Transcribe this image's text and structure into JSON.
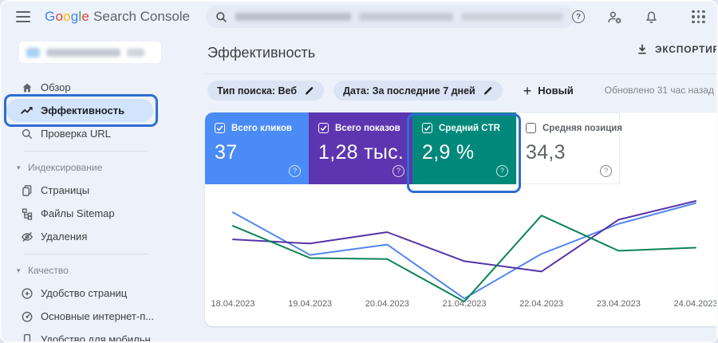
{
  "topbar": {
    "logo_google": "Google",
    "logo_google_colors": [
      "#4285F4",
      "#EA4335",
      "#FBBC05",
      "#4285F4",
      "#34A853",
      "#EA4335"
    ],
    "logo_product": "Search Console",
    "search_query": "(размыто)",
    "help_glyph": "?"
  },
  "icons": {
    "hamburger-icon": "three horizontal bars",
    "search-icon": "magnifier",
    "help-icon": "question mark in circle",
    "user-settings-icon": "person with gear",
    "notifications-icon": "bell",
    "apps-grid-icon": "3x3 dot grid",
    "edit-icon": "pencil",
    "export-icon": "download arrow with bar"
  },
  "sidebar": {
    "property": "(размытое название ресурса)",
    "items": [
      {
        "label": "Обзор",
        "icon": "home",
        "name": "overview"
      },
      {
        "label": "Эффективность",
        "icon": "trending-up",
        "name": "performance",
        "active": true
      },
      {
        "label": "Проверка URL",
        "icon": "search",
        "name": "url-inspection"
      },
      {
        "type": "divider"
      },
      {
        "type": "section",
        "label": "Индексирование",
        "name": "indexing"
      },
      {
        "label": "Страницы",
        "icon": "pages",
        "name": "pages"
      },
      {
        "label": "Файлы Sitemap",
        "icon": "sitemap",
        "name": "sitemaps"
      },
      {
        "label": "Удаления",
        "icon": "eye-off",
        "name": "removals"
      },
      {
        "type": "divider"
      },
      {
        "type": "section",
        "label": "Качество",
        "name": "quality"
      },
      {
        "label": "Удобство страниц",
        "icon": "page-experience",
        "name": "page-experience"
      },
      {
        "label": "Основные интернет-п...",
        "icon": "gauge",
        "name": "core-web-vitals"
      },
      {
        "label": "Удобство для мобильн...",
        "icon": "mobile",
        "name": "mobile-usability"
      }
    ]
  },
  "header": {
    "title": "Эффективность",
    "export_label": "ЭКСПОРТИРОВАТЬ",
    "updated": "Обновлено 31 час назад"
  },
  "filters": {
    "chips": [
      {
        "label": "Тип поиска: Веб"
      },
      {
        "label": "Дата: За последние 7 дней"
      }
    ],
    "new_label": "Новый",
    "plus_glyph": "+"
  },
  "metrics": {
    "cards": [
      {
        "name": "clicks",
        "label": "Всего кликов",
        "value": "37",
        "bg": "#4b8bf5",
        "text_color": "#ffffff",
        "checked": true
      },
      {
        "name": "impressions",
        "label": "Всего показов",
        "value": "1,28 тыс.",
        "bg": "#5e35b1",
        "text_color": "#ffffff",
        "checked": true
      },
      {
        "name": "ctr",
        "label": "Средний CTR",
        "value": "2,9 %",
        "bg": "#00897b",
        "text_color": "#ffffff",
        "checked": true,
        "highlighted": true
      },
      {
        "name": "position",
        "label": "Средняя позиция",
        "value": "34,3",
        "bg": "#ffffff",
        "text_color": "#5f6368",
        "checked": false
      }
    ]
  },
  "chart_data": {
    "type": "line",
    "x": [
      "18.04.2023",
      "19.04.2023",
      "20.04.2023",
      "21.04.2023",
      "22.04.2023",
      "23.04.2023",
      "24.04.2023"
    ],
    "series": [
      {
        "name": "Всего кликов",
        "slug": "clicks",
        "color": "#5287ee",
        "values": [
          0.89,
          0.48,
          0.58,
          0.06,
          0.49,
          0.78,
          0.98
        ]
      },
      {
        "name": "Всего показов",
        "slug": "impressions",
        "color": "#5634a8",
        "values": [
          0.63,
          0.59,
          0.7,
          0.42,
          0.32,
          0.82,
          1.0
        ]
      },
      {
        "name": "Средний CTR",
        "slug": "ctr",
        "color": "#0c8456",
        "values": [
          0.76,
          0.45,
          0.44,
          0.03,
          0.86,
          0.52,
          0.55
        ]
      }
    ],
    "y_axis": "hidden",
    "units": "relative scale 0–1 (no y-axis labels shown)",
    "grid": false,
    "legend": "metric cards act as legend",
    "totals": {
      "clicks": "37",
      "impressions": "1,28 тыс.",
      "ctr": "2,9 %",
      "position": "34,3"
    }
  },
  "annotations": {
    "sidebar_highlight": "blue box around Эффективность item",
    "ctr_highlight": "blue box around Средний CTR card"
  }
}
